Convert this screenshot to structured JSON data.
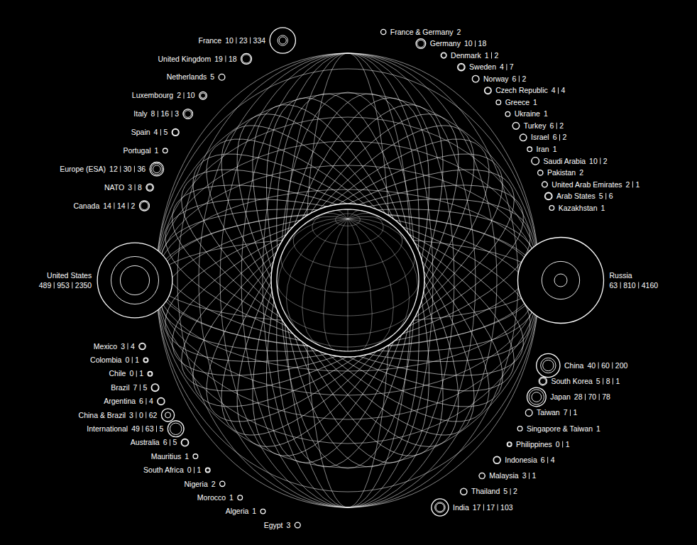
{
  "chart_data": {
    "type": "radial",
    "entries": [
      {
        "label": "France & Germany",
        "values": [
          2
        ]
      },
      {
        "label": "Germany",
        "values": [
          10,
          18
        ]
      },
      {
        "label": "Denmark",
        "values": [
          1,
          2
        ]
      },
      {
        "label": "Sweden",
        "values": [
          4,
          7
        ]
      },
      {
        "label": "Norway",
        "values": [
          6,
          2
        ]
      },
      {
        "label": "Czech Republic",
        "values": [
          4,
          4
        ]
      },
      {
        "label": "Greece",
        "values": [
          1
        ]
      },
      {
        "label": "Ukraine",
        "values": [
          1
        ]
      },
      {
        "label": "Turkey",
        "values": [
          6,
          2
        ]
      },
      {
        "label": "Israel",
        "values": [
          6,
          2
        ]
      },
      {
        "label": "Iran",
        "values": [
          1
        ]
      },
      {
        "label": "Saudi Arabia",
        "values": [
          10,
          2
        ]
      },
      {
        "label": "Pakistan",
        "values": [
          2
        ]
      },
      {
        "label": "United Arab Emirates",
        "values": [
          2,
          1
        ]
      },
      {
        "label": "Arab States",
        "values": [
          5,
          6
        ]
      },
      {
        "label": "Kazakhstan",
        "values": [
          1
        ]
      },
      {
        "label": "Russia",
        "values": [
          63,
          810,
          4160
        ]
      },
      {
        "label": "China",
        "values": [
          40,
          60,
          200
        ]
      },
      {
        "label": "South Korea",
        "values": [
          5,
          8,
          1
        ]
      },
      {
        "label": "Japan",
        "values": [
          28,
          70,
          78
        ]
      },
      {
        "label": "Taiwan",
        "values": [
          7,
          1
        ]
      },
      {
        "label": "Singapore & Taiwan",
        "values": [
          1
        ]
      },
      {
        "label": "Philippines",
        "values": [
          0,
          1
        ]
      },
      {
        "label": "Indonesia",
        "values": [
          6,
          4
        ]
      },
      {
        "label": "Malaysia",
        "values": [
          3,
          1
        ]
      },
      {
        "label": "Thailand",
        "values": [
          5,
          2
        ]
      },
      {
        "label": "India",
        "values": [
          17,
          17,
          103
        ]
      },
      {
        "label": "Egypt",
        "values": [
          3
        ]
      },
      {
        "label": "Algeria",
        "values": [
          1
        ]
      },
      {
        "label": "Morocco",
        "values": [
          1
        ]
      },
      {
        "label": "Nigeria",
        "values": [
          2
        ]
      },
      {
        "label": "South Africa",
        "values": [
          0,
          1
        ]
      },
      {
        "label": "Mauritius",
        "values": [
          1
        ]
      },
      {
        "label": "Australia",
        "values": [
          6,
          5
        ]
      },
      {
        "label": "International",
        "values": [
          49,
          63,
          5
        ]
      },
      {
        "label": "China & Brazil",
        "values": [
          3,
          0,
          62
        ]
      },
      {
        "label": "Argentina",
        "values": [
          6,
          4
        ]
      },
      {
        "label": "Brazil",
        "values": [
          7,
          5
        ]
      },
      {
        "label": "Chile",
        "values": [
          0,
          1
        ]
      },
      {
        "label": "Colombia",
        "values": [
          0,
          1
        ]
      },
      {
        "label": "Mexico",
        "values": [
          3,
          4
        ]
      },
      {
        "label": "United States",
        "values": [
          489,
          953,
          2350
        ]
      },
      {
        "label": "Canada",
        "values": [
          14,
          14,
          2
        ]
      },
      {
        "label": "NATO",
        "values": [
          3,
          8
        ]
      },
      {
        "label": "Europe (ESA)",
        "values": [
          12,
          30,
          36
        ]
      },
      {
        "label": "Portugal",
        "values": [
          1
        ]
      },
      {
        "label": "Spain",
        "values": [
          4,
          5
        ]
      },
      {
        "label": "Italy",
        "values": [
          8,
          16,
          3
        ]
      },
      {
        "label": "Luxembourg",
        "values": [
          2,
          10
        ]
      },
      {
        "label": "Netherlands",
        "values": [
          5
        ]
      },
      {
        "label": "United Kingdom",
        "values": [
          19,
          18
        ]
      },
      {
        "label": "France",
        "values": [
          10,
          23,
          334
        ]
      }
    ]
  }
}
